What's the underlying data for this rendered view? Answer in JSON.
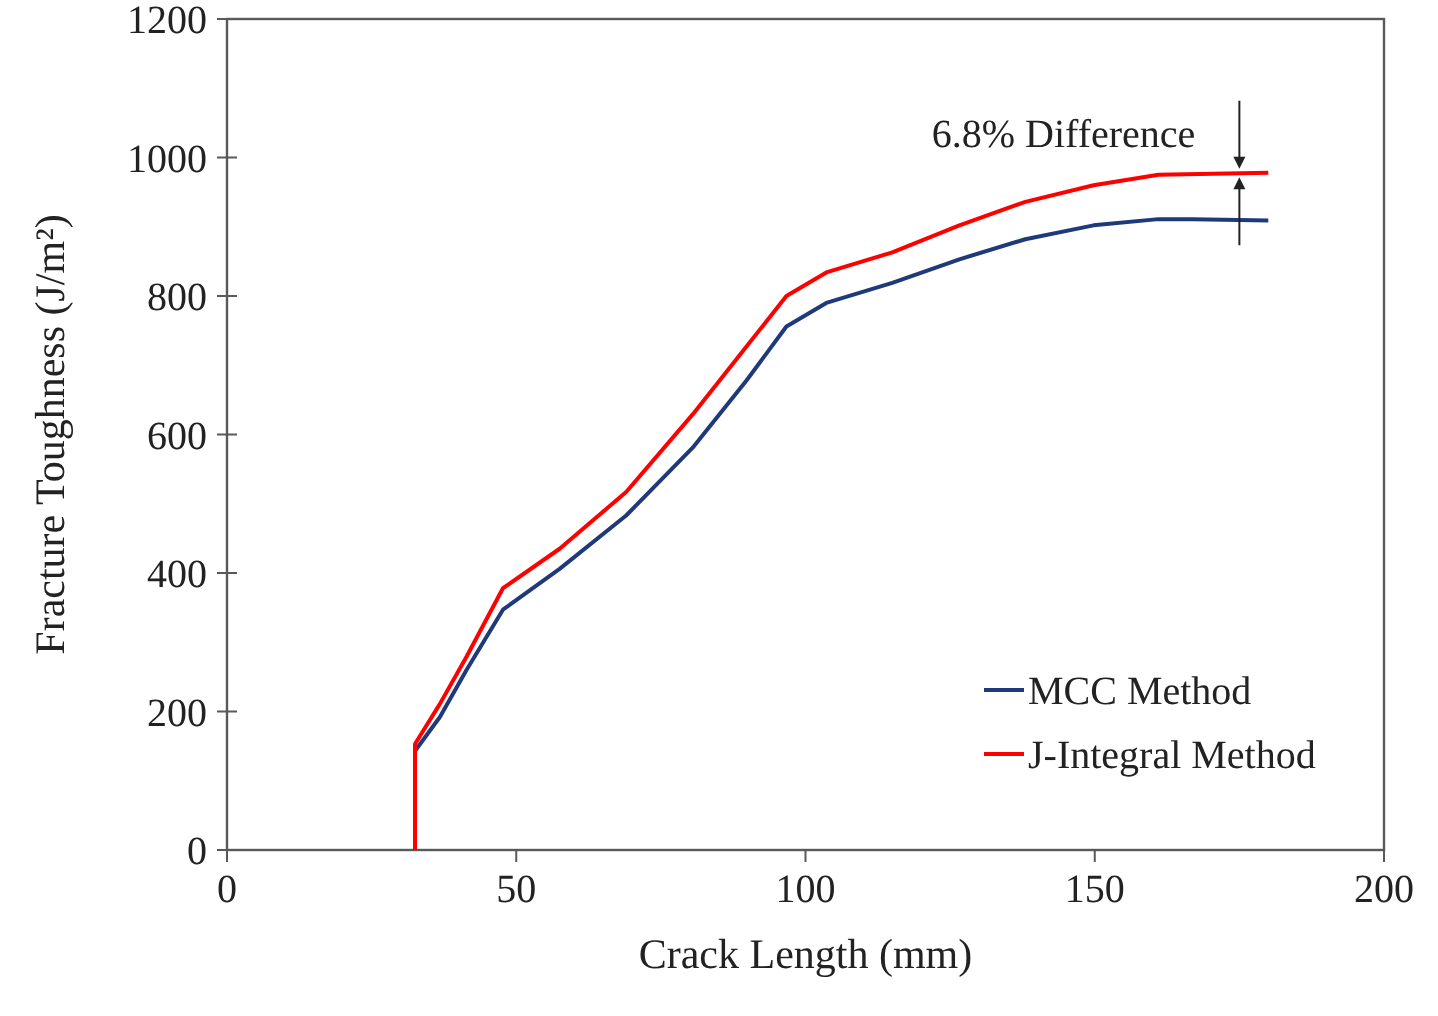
{
  "chart_data": {
    "type": "line",
    "xlabel": "Crack Length (mm)",
    "ylabel": "Fracture Toughness (J/m²)",
    "xlim": [
      0,
      200
    ],
    "xticks": [
      0,
      50,
      100,
      150,
      200
    ],
    "ylim": [
      0,
      1200
    ],
    "yticks": [
      0,
      200,
      400,
      600,
      800,
      1000,
      1200
    ],
    "grid": false,
    "legend": "bottom right",
    "marker": "none",
    "line_style": "solid",
    "annotations": [
      {
        "text": "6.8% Difference",
        "x": 175,
        "y": 978
      }
    ],
    "series": [
      {
        "name": "MCC Method",
        "color": "#1f3a7a",
        "x": [
          32.5,
          36.8,
          41.4,
          47.7,
          57.5,
          69,
          80.5,
          89.8,
          96.7,
          103.6,
          115,
          126.6,
          138,
          149.8,
          161,
          167,
          180
        ],
        "values": [
          143,
          192,
          260,
          347,
          406,
          483,
          581,
          678,
          756,
          790,
          819,
          853,
          882,
          902,
          911,
          911,
          909
        ]
      },
      {
        "name": "J-Integral Method",
        "color": "#ff0000",
        "x": [
          32.5,
          32.5,
          36.8,
          41.4,
          47.7,
          57.5,
          69,
          80.5,
          89.8,
          96.7,
          103.6,
          115,
          126.6,
          138,
          149.8,
          161,
          180
        ],
        "values": [
          0,
          153,
          211,
          279,
          378,
          435,
          517,
          629,
          727,
          800,
          834,
          863,
          902,
          936,
          960,
          975,
          978
        ]
      }
    ]
  }
}
